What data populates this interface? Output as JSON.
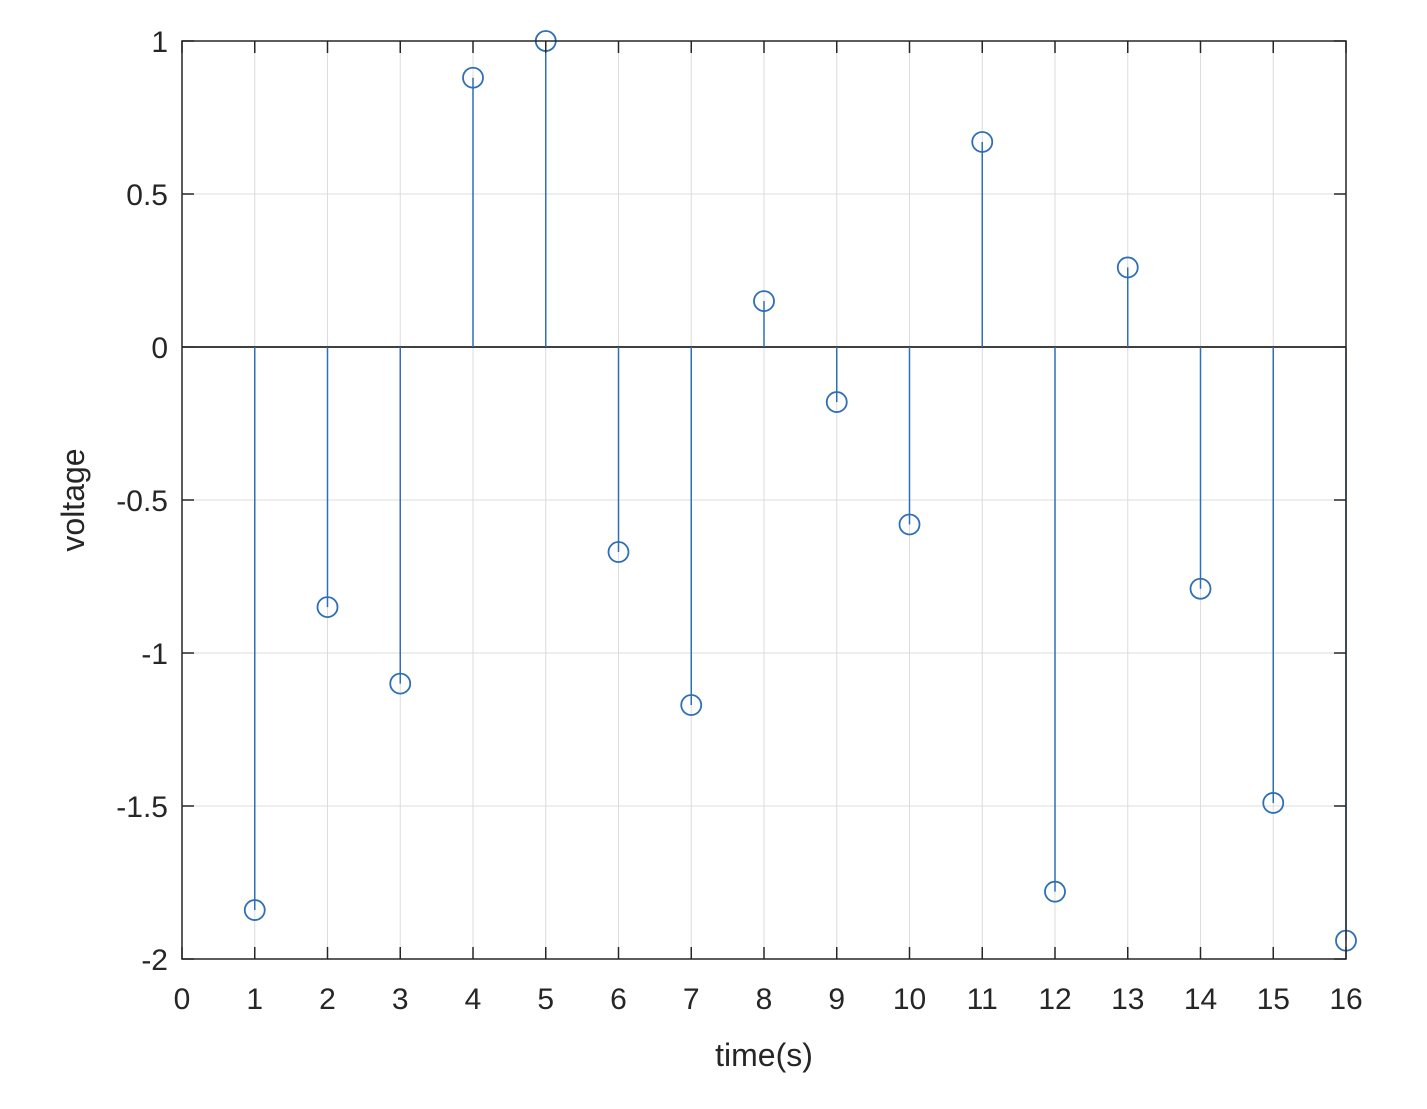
{
  "chart_data": {
    "type": "stem",
    "title": "",
    "xlabel": "time(s)",
    "ylabel": "voltage",
    "xlim": [
      0,
      16
    ],
    "ylim": [
      -2,
      1
    ],
    "xticks": [
      "0",
      "1",
      "2",
      "3",
      "4",
      "5",
      "6",
      "7",
      "8",
      "9",
      "10",
      "11",
      "12",
      "13",
      "14",
      "15",
      "16"
    ],
    "yticks": [
      "1",
      "0.5",
      "0",
      "-0.5",
      "-1",
      "-1.5",
      "-2"
    ],
    "grid": true,
    "color": "#2f6fb5",
    "series": [
      {
        "x": [
          1,
          2,
          3,
          4,
          5,
          6,
          7,
          8,
          9,
          10,
          11,
          12,
          13,
          14,
          15,
          16
        ],
        "values": [
          -1.84,
          -0.85,
          -1.1,
          0.88,
          1.0,
          -0.67,
          -1.17,
          0.15,
          -0.18,
          -0.58,
          0.67,
          -1.78,
          0.26,
          -0.79,
          -1.49,
          -1.94
        ]
      }
    ]
  }
}
